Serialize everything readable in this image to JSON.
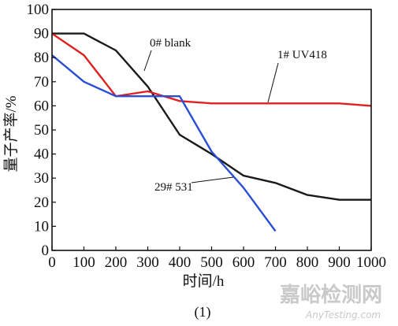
{
  "chart_data": {
    "type": "line",
    "xlabel": "时间/h",
    "ylabel": "量子产率/%",
    "caption": "(1)",
    "xlim": [
      0,
      1000
    ],
    "ylim": [
      0,
      100
    ],
    "x_ticks": [
      0,
      100,
      200,
      300,
      400,
      500,
      600,
      700,
      800,
      900,
      1000
    ],
    "y_ticks": [
      0,
      10,
      20,
      30,
      40,
      50,
      60,
      70,
      80,
      90,
      100
    ],
    "grid": false,
    "series": [
      {
        "name": "0# blank",
        "color": "#1a1a1a",
        "points": [
          [
            0,
            90
          ],
          [
            100,
            90
          ],
          [
            200,
            83
          ],
          [
            300,
            68
          ],
          [
            400,
            48
          ],
          [
            500,
            40
          ],
          [
            600,
            31
          ],
          [
            700,
            28
          ],
          [
            800,
            23
          ],
          [
            900,
            21
          ],
          [
            1000,
            21
          ]
        ]
      },
      {
        "name": "1# UV418",
        "color": "#e02020",
        "points": [
          [
            0,
            90
          ],
          [
            100,
            81
          ],
          [
            200,
            64
          ],
          [
            300,
            66
          ],
          [
            400,
            62
          ],
          [
            500,
            61
          ],
          [
            600,
            61
          ],
          [
            700,
            61
          ],
          [
            800,
            61
          ],
          [
            900,
            61
          ],
          [
            1000,
            60
          ]
        ]
      },
      {
        "name": "29# 531",
        "color": "#2a4fd6",
        "points": [
          [
            0,
            81
          ],
          [
            100,
            70
          ],
          [
            200,
            64
          ],
          [
            300,
            64
          ],
          [
            400,
            64
          ],
          [
            500,
            41
          ],
          [
            600,
            26
          ],
          [
            700,
            8
          ]
        ]
      }
    ]
  },
  "watermark": {
    "cn": "嘉峪检测网",
    "en": "AnyTesting.com"
  }
}
